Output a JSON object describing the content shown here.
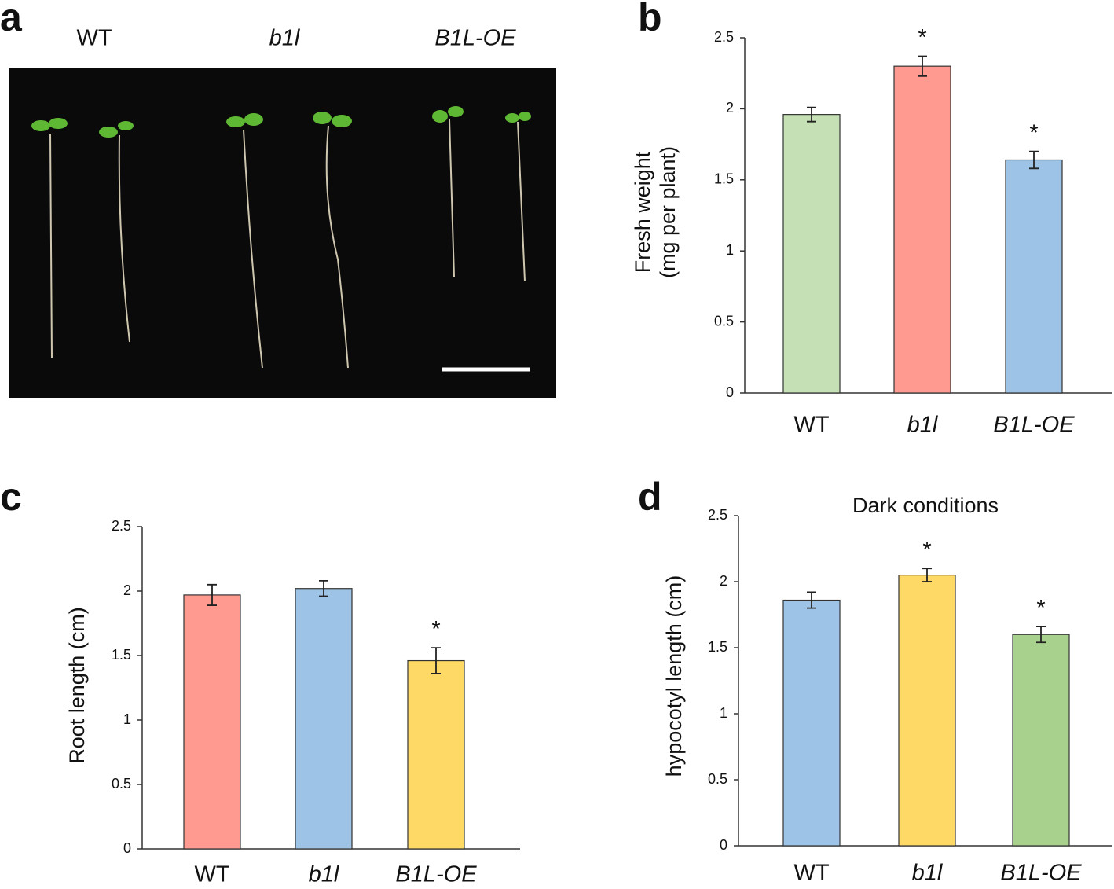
{
  "photo": {
    "panel_label": "a",
    "labels": [
      "WT",
      "b1l",
      "B1L-OE"
    ]
  },
  "chart_data": [
    {
      "type": "bar",
      "panel_label": "b",
      "ylabel": [
        "Fresh weight",
        "(mg per plant)"
      ],
      "categories": [
        "WT",
        "b1l",
        "B1L-OE"
      ],
      "values": [
        1.96,
        2.3,
        1.64
      ],
      "errors": [
        0.05,
        0.07,
        0.06
      ],
      "significance": [
        null,
        "*",
        "*"
      ],
      "colors": [
        "#c5e0b4",
        "#ff9a90",
        "#9dc3e6"
      ],
      "ylim": [
        0,
        2.5
      ],
      "yticks": [
        0,
        0.5,
        1,
        1.5,
        2,
        2.5
      ]
    },
    {
      "type": "bar",
      "panel_label": "c",
      "ylabel": [
        "Root length (cm)"
      ],
      "categories": [
        "WT",
        "b1l",
        "B1L-OE"
      ],
      "values": [
        1.97,
        2.02,
        1.46
      ],
      "errors": [
        0.08,
        0.06,
        0.1
      ],
      "significance": [
        null,
        null,
        "*"
      ],
      "colors": [
        "#ff9a90",
        "#9dc3e6",
        "#ffd966"
      ],
      "ylim": [
        0,
        2.5
      ],
      "yticks": [
        0,
        0.5,
        1,
        1.5,
        2,
        2.5
      ]
    },
    {
      "type": "bar",
      "panel_label": "d",
      "title": "Dark conditions",
      "ylabel": [
        "hypocotyl length (cm)"
      ],
      "categories": [
        "WT",
        "b1l",
        "B1L-OE"
      ],
      "values": [
        1.86,
        2.05,
        1.6
      ],
      "errors": [
        0.06,
        0.05,
        0.06
      ],
      "significance": [
        null,
        "*",
        "*"
      ],
      "colors": [
        "#9dc3e6",
        "#ffd966",
        "#a9d18e"
      ],
      "ylim": [
        0,
        2.5
      ],
      "yticks": [
        0,
        0.5,
        1,
        1.5,
        2,
        2.5
      ]
    }
  ]
}
